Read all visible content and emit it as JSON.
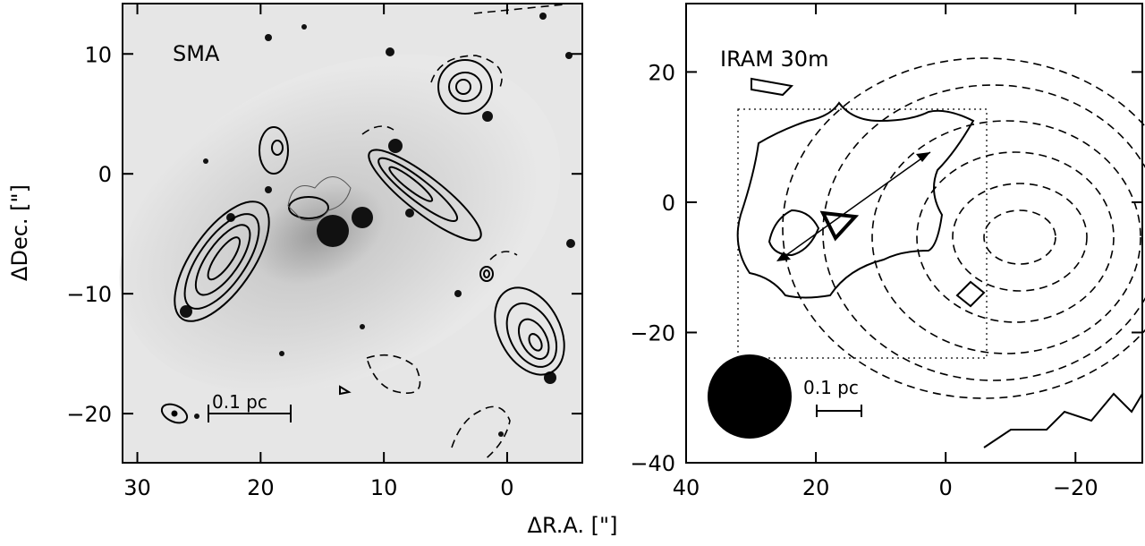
{
  "chart_data": [
    {
      "type": "contour",
      "annotation": "SMA",
      "scale_label": "0.1 pc",
      "xlabel": "ΔR.A. [\"]",
      "ylabel": "ΔDec. [\"]",
      "xlim": [
        31.2,
        -6.1
      ],
      "ylim": [
        -24.1,
        14.2
      ],
      "xticks": [
        30,
        20,
        10,
        0
      ],
      "yticks": [
        {
          "value": -20,
          "label": "−20"
        },
        {
          "value": -10,
          "label": "−10"
        },
        0,
        10
      ]
    },
    {
      "type": "contour",
      "annotation": "IRAM 30m",
      "scale_label": "0.1 pc",
      "xlim": [
        40,
        -30.3
      ],
      "ylim": [
        -40,
        30.5
      ],
      "xticks": [
        40,
        20,
        0,
        {
          "value": -20,
          "label": "−20"
        }
      ],
      "yticks": [
        {
          "value": -40,
          "label": "−40"
        },
        {
          "value": -20,
          "label": "−20"
        },
        0,
        20
      ]
    }
  ]
}
